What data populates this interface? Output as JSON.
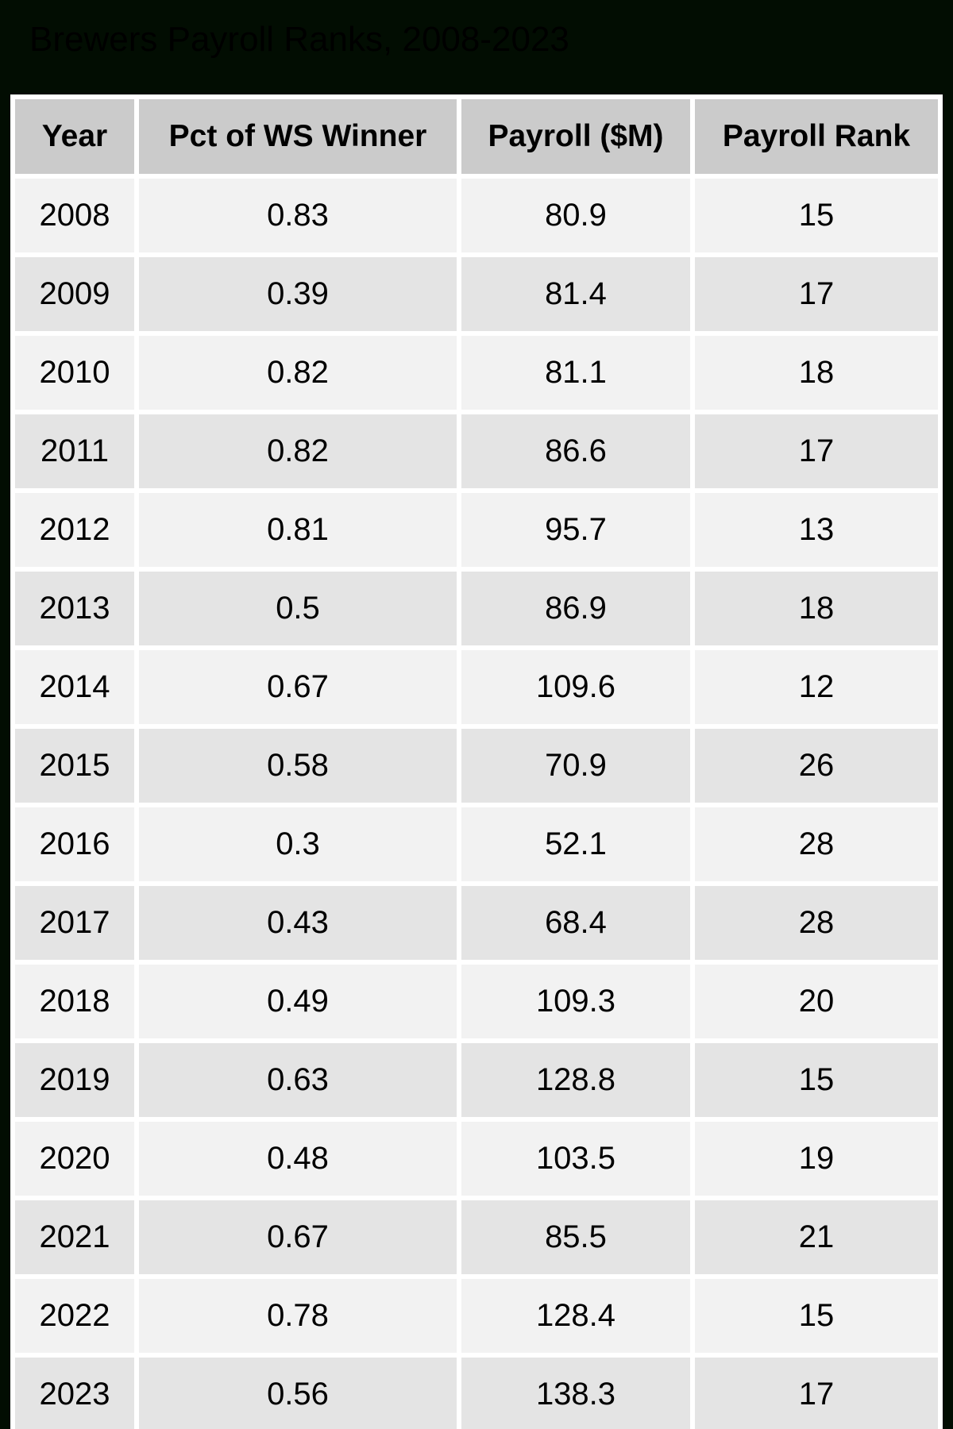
{
  "title": "Brewers Payroll Ranks, 2008-2023",
  "colors": {
    "page_bg": "#020d02",
    "title_text": "#000000",
    "header_bg": "#cbcbcb",
    "row_light": "#f2f2f2",
    "row_dark": "#e4e4e4",
    "gap": "#ffffff",
    "cell_text": "#000000"
  },
  "chart_data": {
    "type": "table",
    "title": "Brewers Payroll Ranks, 2008-2023",
    "columns": [
      "Year",
      "Pct of WS Winner",
      "Payroll ($M)",
      "Payroll Rank"
    ],
    "rows": [
      [
        2008,
        0.83,
        80.9,
        15
      ],
      [
        2009,
        0.39,
        81.4,
        17
      ],
      [
        2010,
        0.82,
        81.1,
        18
      ],
      [
        2011,
        0.82,
        86.6,
        17
      ],
      [
        2012,
        0.81,
        95.7,
        13
      ],
      [
        2013,
        0.5,
        86.9,
        18
      ],
      [
        2014,
        0.67,
        109.6,
        12
      ],
      [
        2015,
        0.58,
        70.9,
        26
      ],
      [
        2016,
        0.3,
        52.1,
        28
      ],
      [
        2017,
        0.43,
        68.4,
        28
      ],
      [
        2018,
        0.49,
        109.3,
        20
      ],
      [
        2019,
        0.63,
        128.8,
        15
      ],
      [
        2020,
        0.48,
        103.5,
        19
      ],
      [
        2021,
        0.67,
        85.5,
        21
      ],
      [
        2022,
        0.78,
        128.4,
        15
      ],
      [
        2023,
        0.56,
        138.3,
        17
      ]
    ]
  }
}
